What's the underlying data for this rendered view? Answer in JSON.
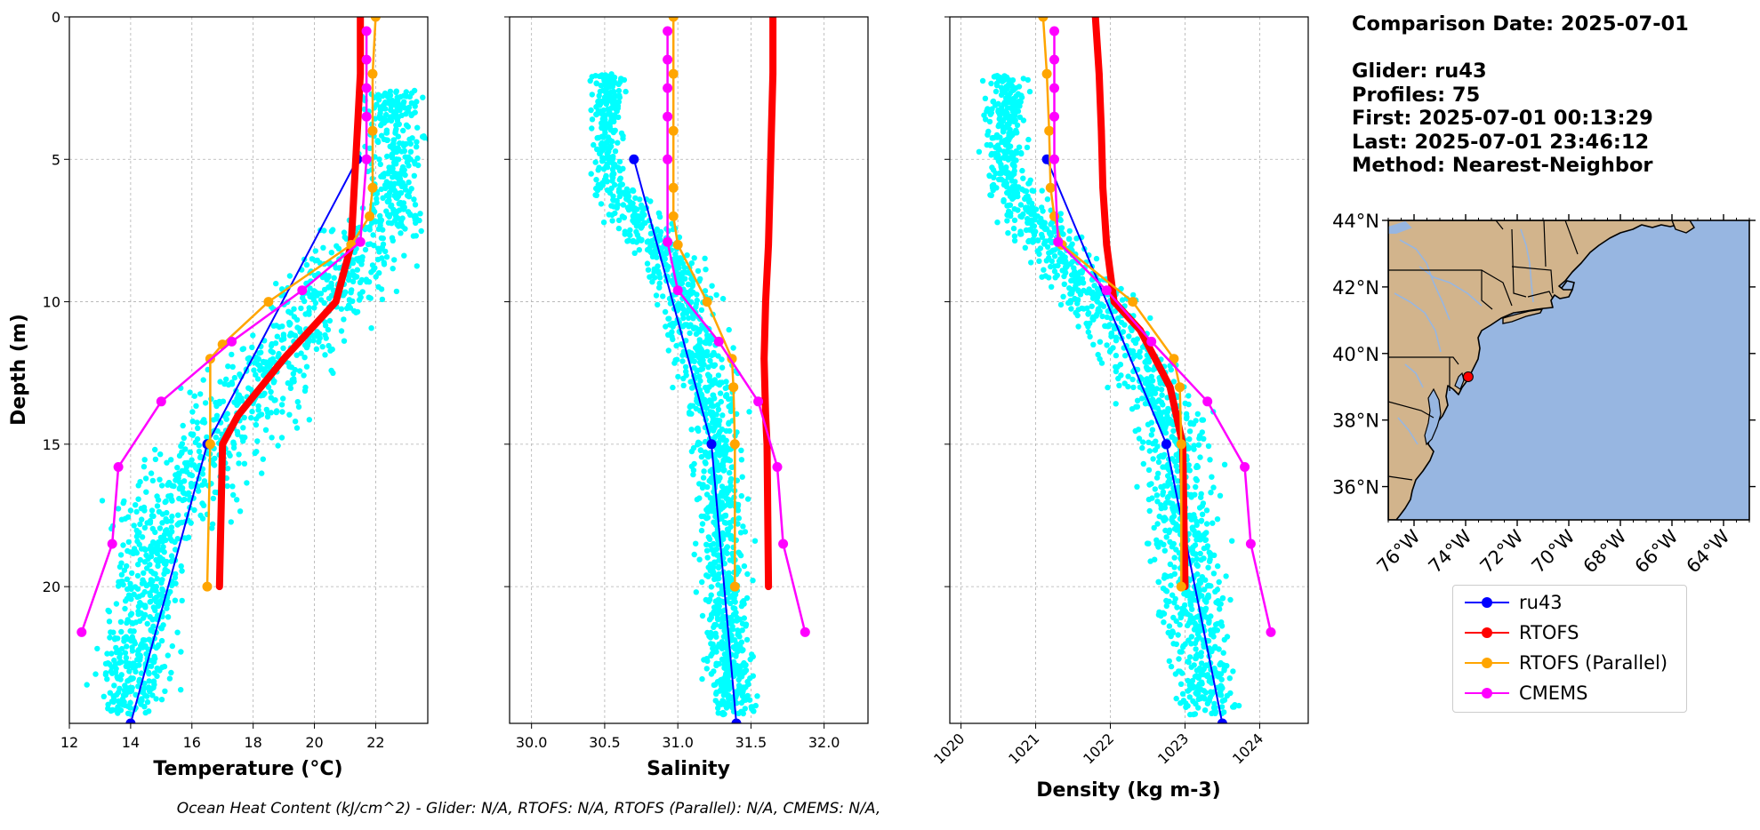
{
  "info": {
    "comparison_date": "Comparison Date: 2025-07-01",
    "glider": "Glider: ru43",
    "profiles": "Profiles: 75",
    "first": "First: 2025-07-01 00:13:29",
    "last": "Last: 2025-07-01 23:46:12",
    "method": "Method: Nearest-Neighbor"
  },
  "footer": "Ocean Heat Content (kJ/cm^2) - Glider: N/A,  RTOFS: N/A,  RTOFS (Parallel): N/A,  CMEMS: N/A,",
  "colors": {
    "ru43": "#0000ff",
    "rtofs": "#ff0000",
    "rtofs_parallel": "#ffa500",
    "cmems": "#ff00ff",
    "glider_scatter": "#00ffff",
    "land": "#d2b48c",
    "ocean": "#97b6e1"
  },
  "legend": [
    {
      "name": "ru43",
      "color": "#0000ff"
    },
    {
      "name": "RTOFS",
      "color": "#ff0000"
    },
    {
      "name": "RTOFS (Parallel)",
      "color": "#ffa500"
    },
    {
      "name": "CMEMS",
      "color": "#ff00ff"
    }
  ],
  "chart_data": [
    {
      "type": "line",
      "xlabel": "Temperature (°C)",
      "ylabel": "Depth (m)",
      "xlim": [
        12,
        23.7
      ],
      "ylim": [
        24.8,
        0
      ],
      "xticks": [
        12,
        14,
        16,
        18,
        20,
        22
      ],
      "yticks": [
        0,
        5,
        10,
        15,
        20
      ],
      "grid": true,
      "scatter": {
        "name": "glider",
        "color": "#00ffff",
        "x_range": [
          13.5,
          23
        ],
        "depth_range": [
          2.5,
          24.5
        ],
        "shape": "temperature"
      },
      "series": [
        {
          "name": "ru43",
          "color": "#0000ff",
          "x": [
            21.4,
            16.5,
            14
          ],
          "y": [
            5,
            15,
            24.8
          ]
        },
        {
          "name": "RTOFS",
          "color": "#ff0000",
          "x": [
            21.5,
            21.5,
            21.4,
            21.3,
            21.2,
            20.7,
            19.0,
            17.5,
            17.0,
            16.9
          ],
          "y": [
            0,
            2,
            4,
            6,
            8,
            10,
            12,
            14,
            15,
            20
          ]
        },
        {
          "name": "RTOFS (Parallel)",
          "color": "#ffa500",
          "x": [
            22,
            21.9,
            21.9,
            21.9,
            21.8,
            21.2,
            18.5,
            17.0,
            16.6,
            16.6,
            16.5
          ],
          "y": [
            0,
            2,
            4,
            6,
            7,
            8,
            10,
            11.5,
            12,
            15,
            20
          ]
        },
        {
          "name": "CMEMS",
          "color": "#ff00ff",
          "x": [
            21.7,
            21.7,
            21.7,
            21.7,
            21.7,
            21.5,
            19.6,
            17.3,
            15.0,
            13.6,
            13.4,
            12.4
          ],
          "y": [
            0.5,
            1.5,
            2.5,
            3.5,
            5.0,
            7.9,
            9.6,
            11.4,
            13.5,
            15.8,
            18.5,
            21.6
          ]
        }
      ]
    },
    {
      "type": "line",
      "xlabel": "Salinity",
      "ylabel": "",
      "xlim": [
        29.85,
        32.3
      ],
      "ylim": [
        24.8,
        0
      ],
      "xticks": [
        30.0,
        30.5,
        31.0,
        31.5,
        32.0
      ],
      "yticks": [
        0,
        5,
        10,
        15,
        20
      ],
      "grid": true,
      "scatter": {
        "name": "glider",
        "color": "#00ffff",
        "x_range": [
          30.3,
          31.9
        ],
        "depth_range": [
          2,
          24.5
        ],
        "shape": "salinity"
      },
      "series": [
        {
          "name": "ru43",
          "color": "#0000ff",
          "x": [
            30.7,
            31.23,
            31.4
          ],
          "y": [
            5,
            15,
            24.8
          ]
        },
        {
          "name": "RTOFS",
          "color": "#ff0000",
          "x": [
            31.65,
            31.65,
            31.64,
            31.63,
            31.62,
            31.6,
            31.59,
            31.6,
            31.61,
            31.62
          ],
          "y": [
            0,
            2,
            4,
            6,
            8,
            10,
            12,
            14,
            15,
            20
          ]
        },
        {
          "name": "RTOFS (Parallel)",
          "color": "#ffa500",
          "x": [
            30.97,
            30.97,
            30.97,
            30.97,
            30.97,
            31.0,
            31.2,
            31.37,
            31.38,
            31.39,
            31.39
          ],
          "y": [
            0,
            2,
            4,
            6,
            7,
            8,
            10,
            12,
            13,
            15,
            20
          ]
        },
        {
          "name": "CMEMS",
          "color": "#ff00ff",
          "x": [
            30.93,
            30.93,
            30.93,
            30.93,
            30.93,
            30.93,
            31.0,
            31.28,
            31.55,
            31.68,
            31.72,
            31.87
          ],
          "y": [
            0.5,
            1.5,
            2.5,
            3.5,
            5.0,
            7.9,
            9.6,
            11.4,
            13.5,
            15.8,
            18.5,
            21.6
          ]
        }
      ]
    },
    {
      "type": "line",
      "xlabel": "Density (kg m-3)",
      "ylabel": "",
      "xlim": [
        1019.85,
        1024.65
      ],
      "ylim": [
        24.8,
        0
      ],
      "xticks": [
        1020,
        1021,
        1022,
        1023,
        1024
      ],
      "yticks": [
        0,
        5,
        10,
        15,
        20
      ],
      "grid": true,
      "scatter": {
        "name": "glider",
        "color": "#00ffff",
        "x_range": [
          1020.3,
          1023.7
        ],
        "depth_range": [
          2,
          24.5
        ],
        "shape": "density"
      },
      "series": [
        {
          "name": "ru43",
          "color": "#0000ff",
          "x": [
            1021.15,
            1022.75,
            1023.5
          ],
          "y": [
            5,
            15,
            24.8
          ]
        },
        {
          "name": "RTOFS",
          "color": "#ff0000",
          "x": [
            1021.8,
            1021.85,
            1021.88,
            1021.9,
            1021.95,
            1022.05,
            1022.4,
            1022.8,
            1022.97,
            1023.0
          ],
          "y": [
            0,
            2,
            4,
            6,
            8,
            10,
            11,
            13,
            15,
            20
          ]
        },
        {
          "name": "RTOFS (Parallel)",
          "color": "#ffa500",
          "x": [
            1021.1,
            1021.15,
            1021.18,
            1021.2,
            1021.25,
            1021.35,
            1022.3,
            1022.85,
            1022.93,
            1022.95,
            1022.95
          ],
          "y": [
            0,
            2,
            4,
            6,
            7,
            8,
            10,
            12,
            13,
            15,
            20
          ]
        },
        {
          "name": "CMEMS",
          "color": "#ff00ff",
          "x": [
            1021.25,
            1021.25,
            1021.25,
            1021.25,
            1021.25,
            1021.3,
            1021.95,
            1022.55,
            1023.3,
            1023.8,
            1023.88,
            1024.15
          ],
          "y": [
            0.5,
            1.5,
            2.5,
            3.5,
            5.0,
            7.9,
            9.6,
            11.4,
            13.5,
            15.8,
            18.5,
            21.6
          ]
        }
      ]
    }
  ],
  "map": {
    "lon_range": [
      -77,
      -63
    ],
    "lat_range": [
      35,
      44
    ],
    "lat_labels": [
      "44°N",
      "42°N",
      "40°N",
      "38°N",
      "36°N"
    ],
    "lat_ticks": [
      44,
      42,
      40,
      38,
      36
    ],
    "lon_labels": [
      "76°W",
      "74°W",
      "72°W",
      "70°W",
      "68°W",
      "66°W",
      "64°W"
    ],
    "lon_ticks": [
      -76,
      -74,
      -72,
      -70,
      -68,
      -66,
      -64
    ],
    "marker": {
      "lon": -73.9,
      "lat": 39.3,
      "color": "#ff0000"
    }
  }
}
